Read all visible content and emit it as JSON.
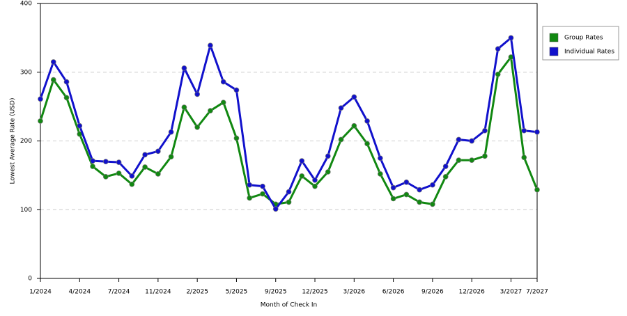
{
  "chart_data": {
    "type": "line",
    "x_label": "Month of Check In",
    "y_label": "Lowest Average Rate (USD)",
    "categories": [
      "1/2024",
      null,
      null,
      "4/2024",
      null,
      null,
      "7/2024",
      null,
      null,
      "11/2024",
      null,
      null,
      "2/2025",
      null,
      null,
      "5/2025",
      null,
      null,
      "9/2025",
      null,
      null,
      "12/2025",
      null,
      null,
      "3/2026",
      null,
      null,
      "6/2026",
      null,
      null,
      "9/2026",
      null,
      null,
      "12/2026",
      null,
      null,
      "3/2027",
      null,
      "7/2027"
    ],
    "series": [
      {
        "name": "Group Rates",
        "color": "#118811",
        "values": [
          229,
          289,
          263,
          210,
          163,
          148,
          153,
          137,
          162,
          152,
          177,
          249,
          220,
          244,
          256,
          204,
          117,
          123,
          108,
          111,
          149,
          134,
          155,
          202,
          222,
          196,
          152,
          116,
          122,
          111,
          108,
          148,
          172,
          172,
          178,
          297,
          322,
          176,
          129
        ]
      },
      {
        "name": "Individual Rates",
        "color": "#1111cc",
        "values": [
          261,
          315,
          286,
          222,
          171,
          170,
          169,
          149,
          180,
          185,
          213,
          306,
          268,
          339,
          286,
          274,
          136,
          134,
          101,
          126,
          171,
          143,
          178,
          248,
          264,
          229,
          175,
          132,
          140,
          129,
          136,
          163,
          202,
          200,
          215,
          334,
          350,
          215,
          213
        ]
      }
    ],
    "ylim": [
      0,
      400
    ],
    "yticks": [
      0,
      100,
      200,
      300,
      400
    ],
    "grid": true,
    "legend": "right"
  }
}
